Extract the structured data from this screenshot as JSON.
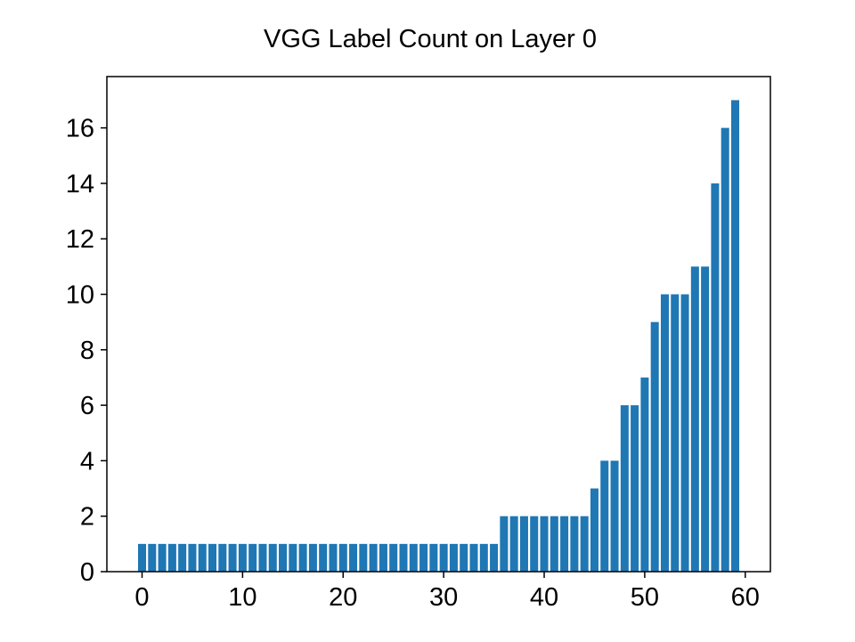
{
  "chart_data": {
    "type": "bar",
    "title": "VGG Label Count on Layer 0",
    "xlabel": "",
    "ylabel": "",
    "x": [
      0,
      1,
      2,
      3,
      4,
      5,
      6,
      7,
      8,
      9,
      10,
      11,
      12,
      13,
      14,
      15,
      16,
      17,
      18,
      19,
      20,
      21,
      22,
      23,
      24,
      25,
      26,
      27,
      28,
      29,
      30,
      31,
      32,
      33,
      34,
      35,
      36,
      37,
      38,
      39,
      40,
      41,
      42,
      43,
      44,
      45,
      46,
      47,
      48,
      49,
      50,
      51,
      52,
      53,
      54,
      55,
      56,
      57,
      58,
      59
    ],
    "values": [
      1,
      1,
      1,
      1,
      1,
      1,
      1,
      1,
      1,
      1,
      1,
      1,
      1,
      1,
      1,
      1,
      1,
      1,
      1,
      1,
      1,
      1,
      1,
      1,
      1,
      1,
      1,
      1,
      1,
      1,
      1,
      1,
      1,
      1,
      1,
      1,
      2,
      2,
      2,
      2,
      2,
      2,
      2,
      2,
      2,
      3,
      4,
      4,
      6,
      6,
      7,
      9,
      10,
      10,
      10,
      11,
      11,
      14,
      16,
      17
    ],
    "xlim": [
      -3.5,
      62.5
    ],
    "ylim": [
      0,
      17.85
    ],
    "xticks": [
      0,
      10,
      20,
      30,
      40,
      50,
      60
    ],
    "yticks": [
      0,
      2,
      4,
      6,
      8,
      10,
      12,
      14,
      16
    ],
    "bar_color": "#1f77b4",
    "grid": false,
    "legend": "none"
  }
}
